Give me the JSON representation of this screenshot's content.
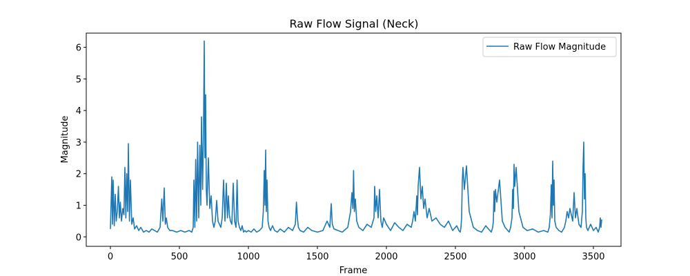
{
  "chart_data": {
    "type": "line",
    "title": "Raw Flow Signal (Neck)",
    "xlabel": "Frame",
    "ylabel": "Magnitude",
    "xlim": [
      -175,
      3700
    ],
    "ylim": [
      -0.3,
      6.45
    ],
    "xticks": [
      0,
      500,
      1000,
      1500,
      2000,
      2500,
      3000,
      3500
    ],
    "yticks": [
      0,
      1,
      2,
      3,
      4,
      5,
      6
    ],
    "grid": false,
    "legend_position": "top-right",
    "series": [
      {
        "name": "Raw Flow Magnitude",
        "color": "#1f77b4",
        "x": [
          0,
          10,
          15,
          20,
          28,
          35,
          42,
          50,
          58,
          65,
          72,
          80,
          90,
          98,
          105,
          112,
          118,
          125,
          130,
          138,
          145,
          155,
          165,
          175,
          190,
          205,
          220,
          240,
          260,
          280,
          300,
          320,
          340,
          360,
          372,
          380,
          390,
          398,
          405,
          415,
          430,
          450,
          480,
          510,
          540,
          570,
          590,
          600,
          605,
          612,
          618,
          625,
          632,
          640,
          648,
          655,
          660,
          668,
          675,
          680,
          685,
          690,
          695,
          700,
          710,
          720,
          730,
          740,
          750,
          760,
          770,
          780,
          790,
          800,
          810,
          820,
          830,
          840,
          848,
          855,
          862,
          870,
          880,
          890,
          900,
          910,
          918,
          925,
          935,
          945,
          955,
          965,
          975,
          985,
          1000,
          1020,
          1040,
          1060,
          1080,
          1100,
          1108,
          1115,
          1120,
          1125,
          1130,
          1135,
          1142,
          1150,
          1160,
          1175,
          1190,
          1210,
          1230,
          1260,
          1290,
          1320,
          1340,
          1348,
          1355,
          1362,
          1375,
          1400,
          1430,
          1460,
          1500,
          1540,
          1570,
          1590,
          1600,
          1608,
          1620,
          1650,
          1680,
          1720,
          1740,
          1750,
          1757,
          1762,
          1768,
          1775,
          1785,
          1800,
          1830,
          1860,
          1890,
          1910,
          1915,
          1922,
          1930,
          1940,
          1950,
          1960,
          1970,
          1980,
          2000,
          2030,
          2060,
          2090,
          2120,
          2150,
          2180,
          2190,
          2200,
          2210,
          2220,
          2225,
          2230,
          2240,
          2250,
          2260,
          2270,
          2280,
          2295,
          2310,
          2330,
          2360,
          2390,
          2420,
          2450,
          2480,
          2510,
          2525,
          2535,
          2540,
          2545,
          2550,
          2555,
          2565,
          2580,
          2600,
          2630,
          2660,
          2690,
          2720,
          2750,
          2760,
          2770,
          2775,
          2780,
          2785,
          2790,
          2800,
          2820,
          2840,
          2860,
          2880,
          2890,
          2900,
          2910,
          2915,
          2920,
          2925,
          2930,
          2940,
          2960,
          2990,
          3020,
          3060,
          3100,
          3140,
          3170,
          3180,
          3188,
          3195,
          3200,
          3205,
          3210,
          3215,
          3220,
          3230,
          3250,
          3270,
          3290,
          3300,
          3310,
          3320,
          3330,
          3340,
          3350,
          3360,
          3370,
          3380,
          3395,
          3410,
          3420,
          3425,
          3430,
          3435,
          3440,
          3445,
          3450,
          3460,
          3480,
          3500,
          3520,
          3535,
          3545,
          3550,
          3555,
          3560
        ],
        "values": [
          0.25,
          1.9,
          0.4,
          1.8,
          0.35,
          1.35,
          0.5,
          0.8,
          1.6,
          0.6,
          1.1,
          0.5,
          0.9,
          0.7,
          2.2,
          0.6,
          2.0,
          0.8,
          2.95,
          0.5,
          1.8,
          0.4,
          0.6,
          0.25,
          0.35,
          0.2,
          0.3,
          0.15,
          0.2,
          0.15,
          0.25,
          0.2,
          0.15,
          0.3,
          1.2,
          0.5,
          1.55,
          0.4,
          0.6,
          0.3,
          0.2,
          0.2,
          0.15,
          0.2,
          0.15,
          0.2,
          0.15,
          0.3,
          1.8,
          0.3,
          2.45,
          0.5,
          3.0,
          0.6,
          2.9,
          1.0,
          3.8,
          1.5,
          3.5,
          6.2,
          2.5,
          4.5,
          1.5,
          1.0,
          2.5,
          0.9,
          1.3,
          0.5,
          0.3,
          0.5,
          1.15,
          0.5,
          0.4,
          0.3,
          0.6,
          1.8,
          0.5,
          1.7,
          0.6,
          1.3,
          0.7,
          0.5,
          0.4,
          1.7,
          0.5,
          0.3,
          1.8,
          0.5,
          0.3,
          0.2,
          0.35,
          0.15,
          0.2,
          0.15,
          0.2,
          0.15,
          0.25,
          0.15,
          0.2,
          0.3,
          0.8,
          2.1,
          1.0,
          2.75,
          0.8,
          1.8,
          0.5,
          0.3,
          0.2,
          0.35,
          0.2,
          0.15,
          0.25,
          0.15,
          0.3,
          0.2,
          0.4,
          1.1,
          0.6,
          0.3,
          0.2,
          0.15,
          0.3,
          0.2,
          0.15,
          0.2,
          0.5,
          0.3,
          1.05,
          0.4,
          0.25,
          0.2,
          0.15,
          0.3,
          0.8,
          1.4,
          0.9,
          2.1,
          0.8,
          1.2,
          0.5,
          0.3,
          0.2,
          0.4,
          0.3,
          0.6,
          1.6,
          0.8,
          1.3,
          0.6,
          1.5,
          0.5,
          0.3,
          0.6,
          0.4,
          0.2,
          0.45,
          0.3,
          0.2,
          0.4,
          0.3,
          0.5,
          0.8,
          0.5,
          1.3,
          0.7,
          1.6,
          2.2,
          1.2,
          1.6,
          0.9,
          1.2,
          0.6,
          0.9,
          0.5,
          0.6,
          0.4,
          0.3,
          0.5,
          0.2,
          0.35,
          0.2,
          0.15,
          0.3,
          0.6,
          1.8,
          2.2,
          1.5,
          2.25,
          0.8,
          0.3,
          0.2,
          0.15,
          0.35,
          0.2,
          0.15,
          0.3,
          0.5,
          1.45,
          0.8,
          1.5,
          1.1,
          1.8,
          0.5,
          0.3,
          0.2,
          0.15,
          0.3,
          0.6,
          1.5,
          0.9,
          2.3,
          1.6,
          2.2,
          0.8,
          0.3,
          0.2,
          0.25,
          0.15,
          0.2,
          0.15,
          0.3,
          0.7,
          1.65,
          0.6,
          2.4,
          1.0,
          1.8,
          0.5,
          0.3,
          0.2,
          0.15,
          0.3,
          0.5,
          0.8,
          0.6,
          0.9,
          0.7,
          0.5,
          1.4,
          0.6,
          0.9,
          0.4,
          0.3,
          0.8,
          2.2,
          3.0,
          1.2,
          2.0,
          0.6,
          0.3,
          0.2,
          0.4,
          0.2,
          0.3,
          0.15,
          0.3,
          0.6,
          0.3,
          0.55
        ]
      }
    ]
  }
}
